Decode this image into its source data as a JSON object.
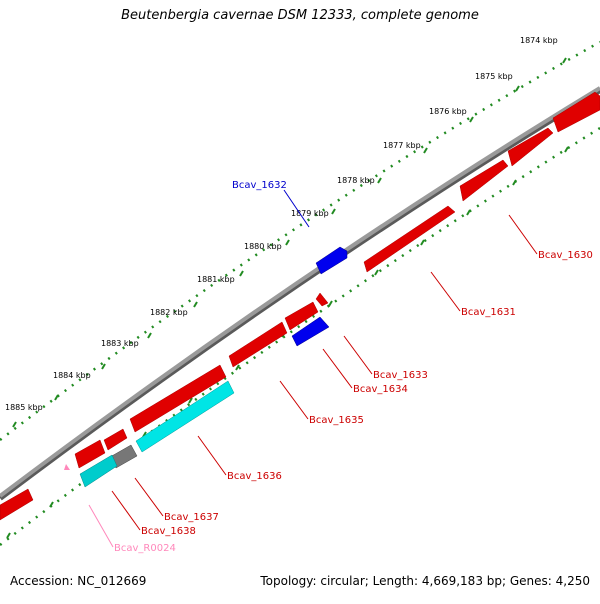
{
  "title": "Beutenbergia cavernae DSM 12333, complete genome",
  "footer": {
    "accession": "Accession: NC_012669",
    "summary": "Topology: circular; Length: 4,669,183 bp; Genes: 4,250"
  },
  "ruler_labels": [
    "1874 kbp",
    "1875 kbp",
    "1876 kbp",
    "1877 kbp",
    "1878 kbp",
    "1879 kbp",
    "1880 kbp",
    "1881 kbp",
    "1882 kbp",
    "1883 kbp",
    "1884 kbp",
    "1885 kbp"
  ],
  "gene_labels": [
    {
      "text": "Bcav_1632",
      "color": "#0000cc"
    },
    {
      "text": "Bcav_1630",
      "color": "#cc0000"
    },
    {
      "text": "Bcav_1631",
      "color": "#cc0000"
    },
    {
      "text": "Bcav_1633",
      "color": "#cc0000"
    },
    {
      "text": "Bcav_1634",
      "color": "#cc0000"
    },
    {
      "text": "Bcav_1635",
      "color": "#cc0000"
    },
    {
      "text": "Bcav_1636",
      "color": "#cc0000"
    },
    {
      "text": "Bcav_1637",
      "color": "#cc0000"
    },
    {
      "text": "Bcav_1638",
      "color": "#cc0000"
    },
    {
      "text": "Bcav_R0024",
      "color": "#ff88bb"
    }
  ],
  "colors": {
    "backbone": "#8c8c8c",
    "ruler_dots": "#228b22",
    "forward_gene": "#ee0000",
    "reverse_gene_blue": "#0000ee",
    "cyan_gene": "#00e5e5",
    "gray_gene": "#777777",
    "rna_gene": "#ff88bb"
  }
}
